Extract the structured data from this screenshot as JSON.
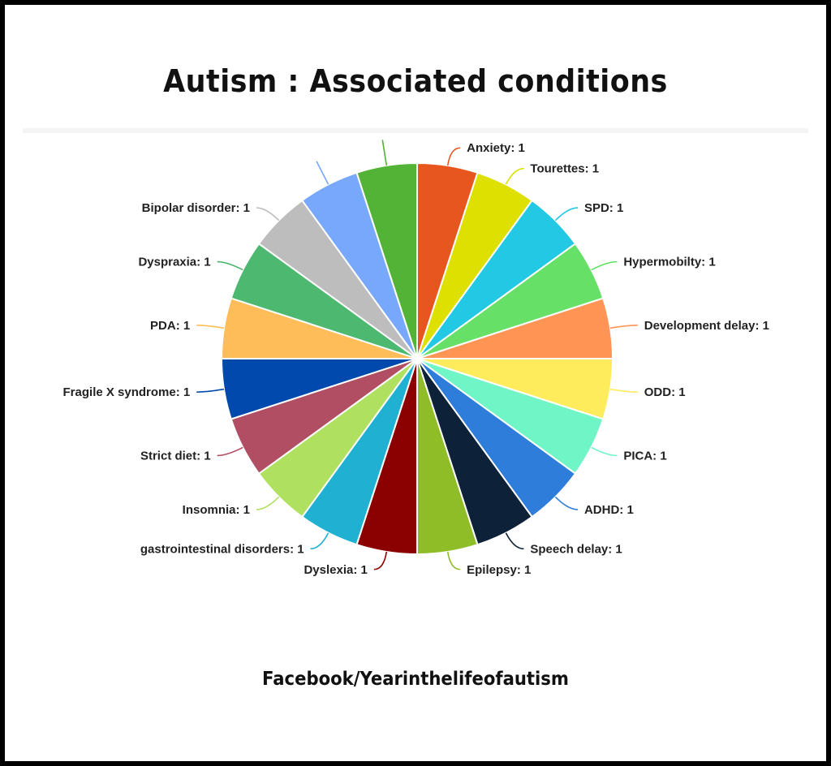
{
  "chart_data": {
    "type": "pie",
    "title": "Autism : Associated conditions",
    "slices": [
      {
        "label": "Anxiety",
        "value": 1,
        "color": "#e8561f"
      },
      {
        "label": "Tourettes",
        "value": 1,
        "color": "#dde000"
      },
      {
        "label": "SPD",
        "value": 1,
        "color": "#22c8e4"
      },
      {
        "label": "Hypermobilty",
        "value": 1,
        "color": "#66e066"
      },
      {
        "label": "Development delay",
        "value": 1,
        "color": "#ff9455"
      },
      {
        "label": "ODD",
        "value": 1,
        "color": "#ffec5c"
      },
      {
        "label": "PICA",
        "value": 1,
        "color": "#70f5c6"
      },
      {
        "label": "ADHD",
        "value": 1,
        "color": "#2f7ddb"
      },
      {
        "label": "Speech delay",
        "value": 1,
        "color": "#0d2238"
      },
      {
        "label": "Epilepsy",
        "value": 1,
        "color": "#8fbd28"
      },
      {
        "label": "Dyslexia",
        "value": 1,
        "color": "#8b0000"
      },
      {
        "label": "gastrointestinal disorders",
        "value": 1,
        "color": "#1fb0d2"
      },
      {
        "label": "Insomnia",
        "value": 1,
        "color": "#b0e060"
      },
      {
        "label": "Strict diet",
        "value": 1,
        "color": "#b24e63"
      },
      {
        "label": "Fragile X syndrome",
        "value": 1,
        "color": "#0249ae"
      },
      {
        "label": "PDA",
        "value": 1,
        "color": "#ffbd5a"
      },
      {
        "label": "Dyspraxia",
        "value": 1,
        "color": "#4db870"
      },
      {
        "label": "Bipolar disorder",
        "value": 1,
        "color": "#bdbdbd"
      },
      {
        "label": "",
        "value": 1,
        "color": "#78a8fb"
      },
      {
        "label": "",
        "value": 1,
        "color": "#52b337"
      }
    ]
  },
  "footer": "Facebook/Yearinthelifeofautism"
}
